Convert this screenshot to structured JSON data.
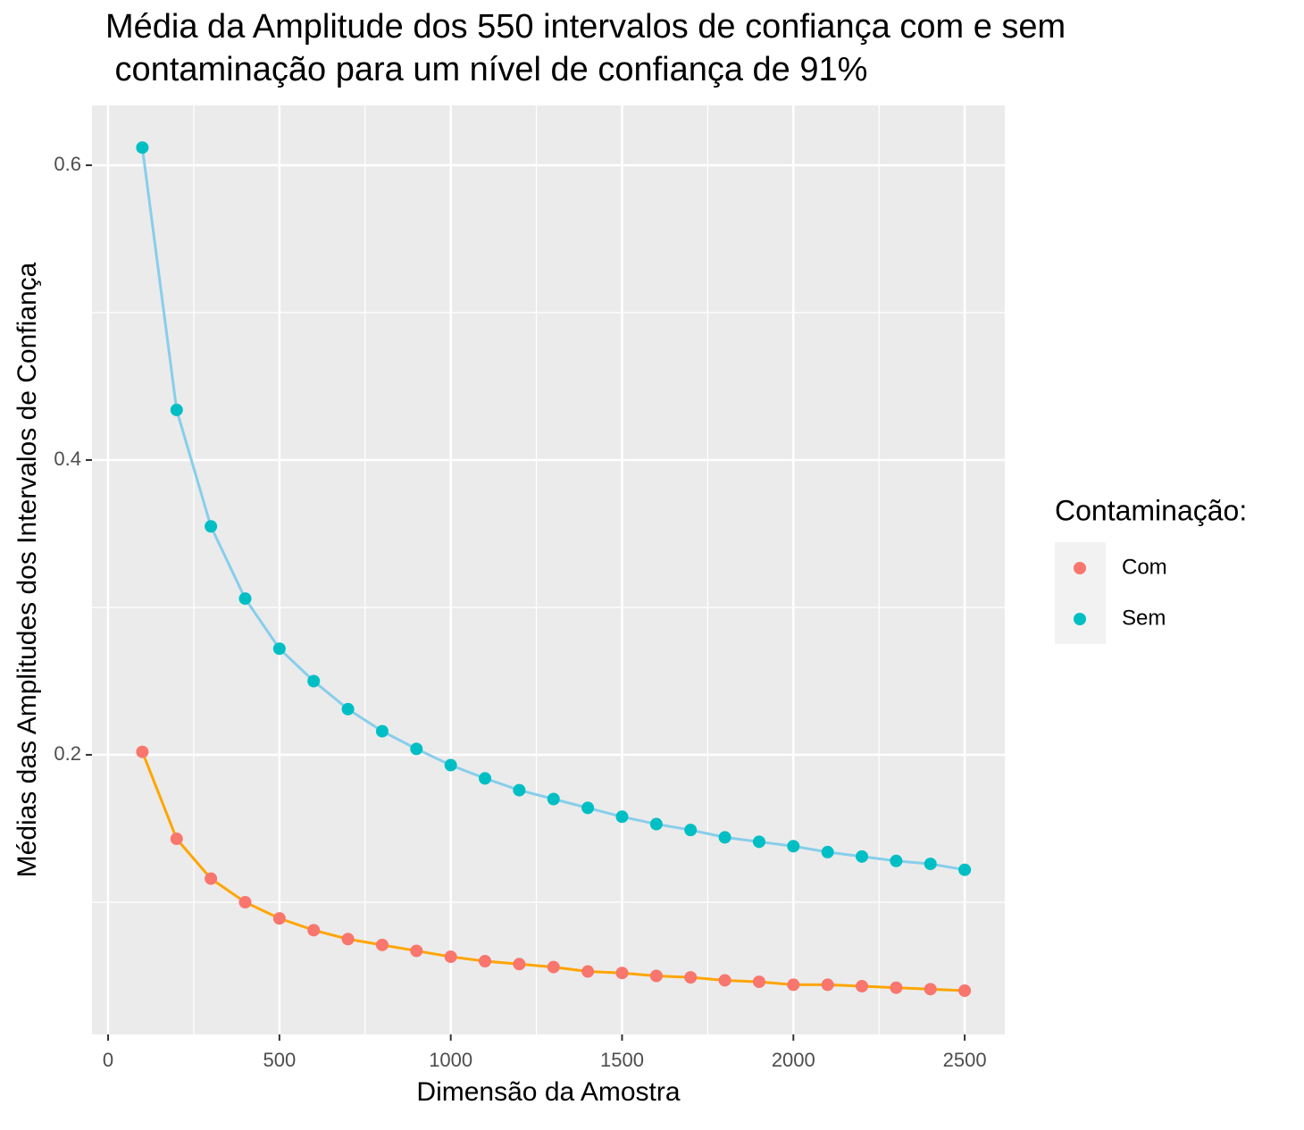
{
  "chart_data": {
    "type": "line",
    "title": [
      "Média da Amplitude dos 550 intervalos de confiança com e sem",
      " contaminação para um nível de confiança de 91%"
    ],
    "x_label": "Dimensão da Amostra",
    "y_label": "Médias das Amplitudes dos Intervalos de Confiança",
    "legend_title": "Contaminação:",
    "legend_position": "right",
    "x": [
      100,
      200,
      300,
      400,
      500,
      600,
      700,
      800,
      900,
      1000,
      1100,
      1200,
      1300,
      1400,
      1500,
      1600,
      1700,
      1800,
      1900,
      2000,
      2100,
      2200,
      2300,
      2400,
      2500
    ],
    "series": [
      {
        "name": "Com",
        "color": "#F8766D",
        "line_color": "#FFA500",
        "values": [
          0.202,
          0.143,
          0.116,
          0.1,
          0.089,
          0.081,
          0.075,
          0.071,
          0.067,
          0.063,
          0.06,
          0.058,
          0.056,
          0.053,
          0.052,
          0.05,
          0.049,
          0.047,
          0.046,
          0.044,
          0.044,
          0.043,
          0.042,
          0.041,
          0.04
        ]
      },
      {
        "name": "Sem",
        "color": "#00BFC4",
        "line_color": "#87CEEB",
        "values": [
          0.612,
          0.434,
          0.355,
          0.306,
          0.272,
          0.25,
          0.231,
          0.216,
          0.204,
          0.193,
          0.184,
          0.176,
          0.17,
          0.164,
          0.158,
          0.153,
          0.149,
          0.144,
          0.141,
          0.138,
          0.134,
          0.131,
          0.128,
          0.126,
          0.122
        ]
      }
    ],
    "xlim": [
      -47,
      2617
    ],
    "ylim": [
      0.0103,
      0.6406
    ],
    "xticks": [
      0,
      500,
      1000,
      1500,
      2000,
      2500
    ],
    "yticks": [
      0.2,
      0.4,
      0.6
    ],
    "minor_xticks": [
      250,
      750,
      1250,
      1750,
      2250
    ],
    "minor_yticks": [
      0.1,
      0.3,
      0.5
    ],
    "grid": true
  }
}
